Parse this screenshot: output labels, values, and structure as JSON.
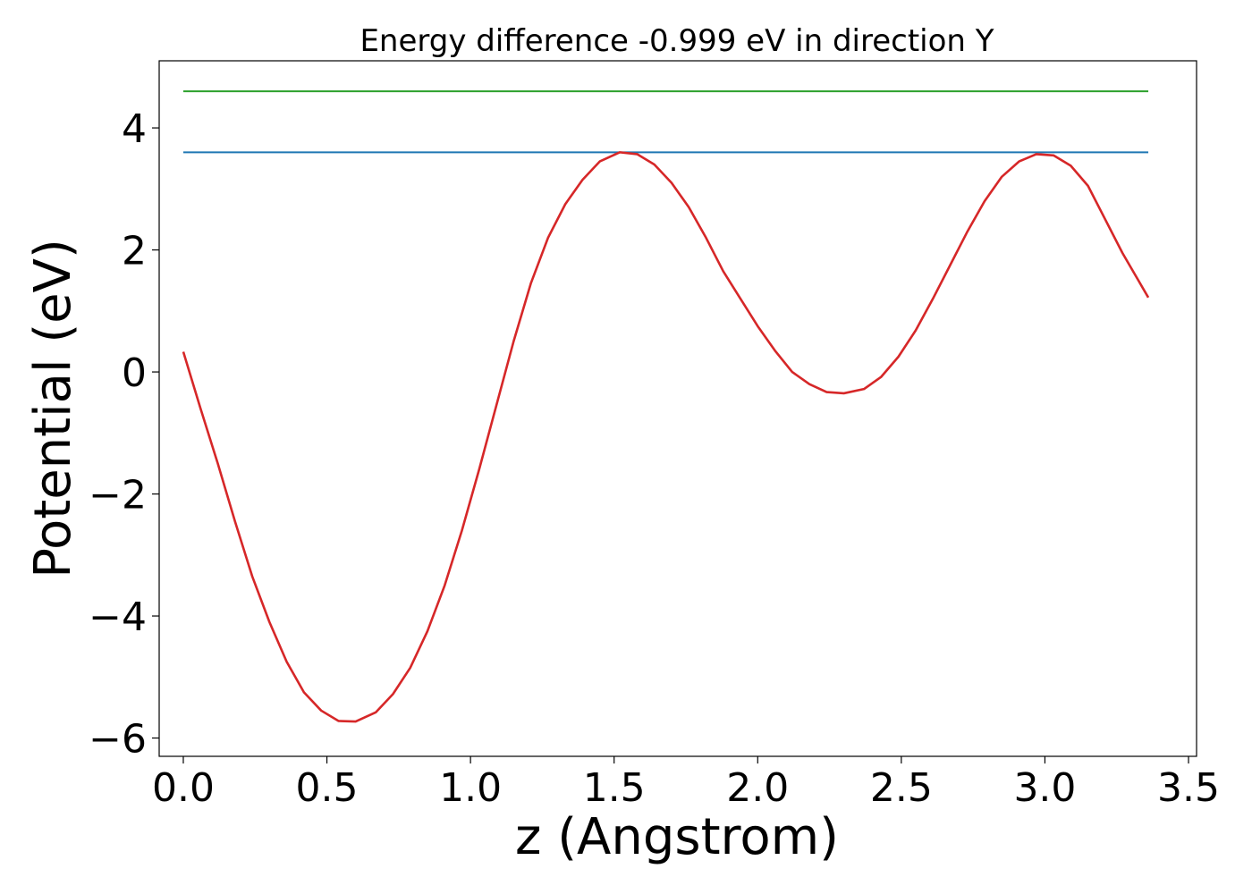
{
  "chart_data": {
    "type": "line",
    "title": "Energy difference -0.999 eV in direction Y",
    "xlabel": "z (Angstrom)",
    "ylabel": "Potential (eV)",
    "xlim": [
      -0.084,
      3.528
    ],
    "ylim": [
      -6.3,
      5.1
    ],
    "xticks": [
      {
        "value": 0.0,
        "label": "0.0"
      },
      {
        "value": 0.5,
        "label": "0.5"
      },
      {
        "value": 1.0,
        "label": "1.0"
      },
      {
        "value": 1.5,
        "label": "1.5"
      },
      {
        "value": 2.0,
        "label": "2.0"
      },
      {
        "value": 2.5,
        "label": "2.5"
      },
      {
        "value": 3.0,
        "label": "3.0"
      },
      {
        "value": 3.5,
        "label": "3.5"
      }
    ],
    "yticks": [
      {
        "value": -6,
        "label": "−6"
      },
      {
        "value": -4,
        "label": "−4"
      },
      {
        "value": -2,
        "label": "−2"
      },
      {
        "value": 0,
        "label": "0"
      },
      {
        "value": 2,
        "label": "2"
      },
      {
        "value": 4,
        "label": "4"
      }
    ],
    "grid": false,
    "series": [
      {
        "color": "#2ca02c",
        "x": [
          0.0,
          3.36
        ],
        "y": [
          4.6,
          4.6
        ]
      },
      {
        "color": "#1f77b4",
        "x": [
          0.0,
          3.36
        ],
        "y": [
          3.6,
          3.6
        ]
      },
      {
        "color": "#d62728",
        "x": [
          0.0,
          0.06,
          0.12,
          0.18,
          0.24,
          0.3,
          0.36,
          0.42,
          0.48,
          0.54,
          0.6,
          0.67,
          0.73,
          0.79,
          0.85,
          0.91,
          0.97,
          1.03,
          1.09,
          1.15,
          1.21,
          1.27,
          1.33,
          1.39,
          1.45,
          1.52,
          1.58,
          1.64,
          1.7,
          1.76,
          1.82,
          1.88,
          1.94,
          2.0,
          2.06,
          2.12,
          2.18,
          2.24,
          2.3,
          2.37,
          2.43,
          2.49,
          2.55,
          2.61,
          2.67,
          2.73,
          2.79,
          2.85,
          2.91,
          2.97,
          3.03,
          3.09,
          3.15,
          3.21,
          3.27,
          3.36
        ],
        "y": [
          0.33,
          -0.6,
          -1.5,
          -2.45,
          -3.35,
          -4.1,
          -4.75,
          -5.25,
          -5.55,
          -5.72,
          -5.73,
          -5.58,
          -5.28,
          -4.85,
          -4.25,
          -3.5,
          -2.6,
          -1.6,
          -0.55,
          0.5,
          1.45,
          2.2,
          2.75,
          3.15,
          3.45,
          3.6,
          3.57,
          3.4,
          3.1,
          2.7,
          2.2,
          1.65,
          1.2,
          0.75,
          0.35,
          0.0,
          -0.2,
          -0.33,
          -0.35,
          -0.28,
          -0.08,
          0.25,
          0.68,
          1.2,
          1.75,
          2.3,
          2.8,
          3.2,
          3.45,
          3.57,
          3.55,
          3.38,
          3.05,
          2.5,
          1.95,
          1.22
        ]
      }
    ]
  }
}
